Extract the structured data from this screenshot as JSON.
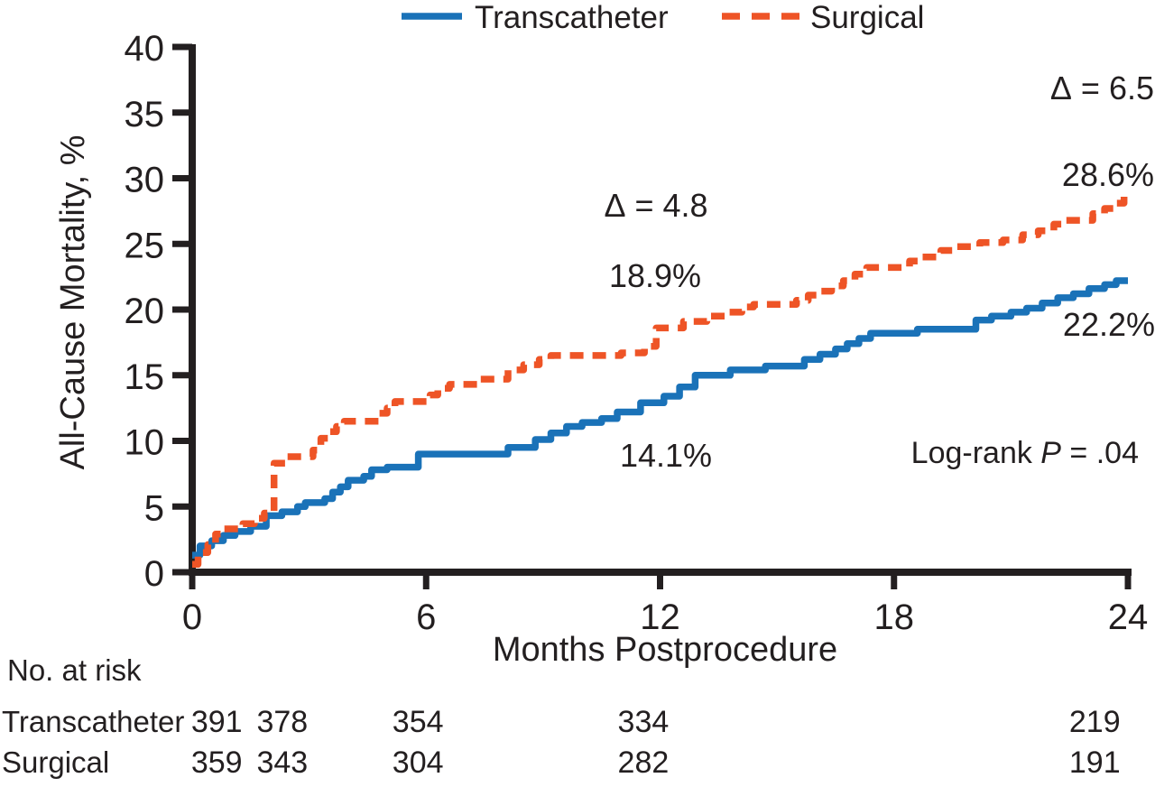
{
  "figure": {
    "background": "#ffffff",
    "text_color": "#231f20",
    "axis_color": "#231f20"
  },
  "legend": {
    "position": "top-center",
    "items": [
      {
        "label": "Transcatheter",
        "color": "#1a72b8",
        "style": "solid"
      },
      {
        "label": "Surgical",
        "color": "#ee5426",
        "style": "dashed"
      }
    ]
  },
  "chart_data": {
    "type": "line",
    "subtype": "kaplan_meier_step",
    "title": "",
    "xlabel": "Months Postprocedure",
    "ylabel": "All-Cause Mortality, %",
    "xlim": [
      0,
      24
    ],
    "ylim": [
      0,
      40
    ],
    "xticks": [
      0,
      6,
      12,
      18,
      24
    ],
    "yticks": [
      0,
      5,
      10,
      15,
      20,
      25,
      30,
      35,
      40
    ],
    "grid": false,
    "series": [
      {
        "name": "Transcatheter",
        "color": "#1a72b8",
        "style": "solid",
        "points": [
          [
            0,
            1.3
          ],
          [
            0.2,
            2.0
          ],
          [
            0.5,
            2.4
          ],
          [
            0.8,
            2.8
          ],
          [
            1.1,
            3.1
          ],
          [
            1.5,
            3.5
          ],
          [
            1.9,
            4.3
          ],
          [
            2.3,
            4.6
          ],
          [
            2.7,
            5.0
          ],
          [
            2.9,
            5.3
          ],
          [
            3.4,
            5.6
          ],
          [
            3.6,
            6.1
          ],
          [
            3.8,
            6.5
          ],
          [
            4.0,
            7.0
          ],
          [
            4.4,
            7.3
          ],
          [
            4.6,
            7.8
          ],
          [
            5.0,
            8.0
          ],
          [
            5.8,
            9.0
          ],
          [
            8.1,
            9.5
          ],
          [
            8.8,
            10.1
          ],
          [
            9.2,
            10.6
          ],
          [
            9.6,
            11.1
          ],
          [
            10.0,
            11.4
          ],
          [
            10.5,
            11.7
          ],
          [
            10.9,
            12.2
          ],
          [
            11.5,
            12.9
          ],
          [
            12.1,
            13.4
          ],
          [
            12.5,
            14.1
          ],
          [
            12.9,
            15.0
          ],
          [
            13.8,
            15.4
          ],
          [
            14.7,
            15.7
          ],
          [
            15.7,
            16.2
          ],
          [
            16.1,
            16.6
          ],
          [
            16.5,
            17.0
          ],
          [
            16.8,
            17.4
          ],
          [
            17.1,
            17.8
          ],
          [
            17.4,
            18.2
          ],
          [
            18.6,
            18.5
          ],
          [
            20.1,
            19.2
          ],
          [
            20.5,
            19.5
          ],
          [
            21.0,
            19.8
          ],
          [
            21.4,
            20.1
          ],
          [
            21.8,
            20.5
          ],
          [
            22.2,
            20.9
          ],
          [
            22.6,
            21.2
          ],
          [
            23.0,
            21.6
          ],
          [
            23.4,
            21.9
          ],
          [
            23.7,
            22.2
          ],
          [
            24,
            22.2
          ]
        ]
      },
      {
        "name": "Surgical",
        "color": "#ee5426",
        "style": "dashed",
        "points": [
          [
            0,
            0.6
          ],
          [
            0.15,
            1.5
          ],
          [
            0.4,
            2.1
          ],
          [
            0.6,
            2.9
          ],
          [
            0.8,
            3.3
          ],
          [
            1.3,
            3.7
          ],
          [
            1.6,
            4.1
          ],
          [
            1.85,
            4.5
          ],
          [
            2.1,
            8.3
          ],
          [
            2.4,
            8.8
          ],
          [
            3.1,
            9.3
          ],
          [
            3.3,
            10.2
          ],
          [
            3.5,
            10.7
          ],
          [
            3.7,
            11.1
          ],
          [
            3.9,
            11.5
          ],
          [
            4.8,
            12.1
          ],
          [
            5.0,
            12.5
          ],
          [
            5.2,
            13.0
          ],
          [
            6.1,
            13.5
          ],
          [
            6.3,
            14.0
          ],
          [
            6.6,
            14.3
          ],
          [
            7.4,
            14.7
          ],
          [
            8.1,
            15.4
          ],
          [
            8.5,
            15.8
          ],
          [
            8.9,
            16.2
          ],
          [
            9.2,
            16.5
          ],
          [
            11.0,
            16.7
          ],
          [
            11.6,
            17.2
          ],
          [
            11.9,
            18.6
          ],
          [
            12.6,
            19.1
          ],
          [
            13.2,
            19.5
          ],
          [
            13.7,
            19.8
          ],
          [
            14.1,
            20.2
          ],
          [
            14.4,
            20.4
          ],
          [
            15.5,
            20.7
          ],
          [
            15.8,
            21.1
          ],
          [
            16.1,
            21.4
          ],
          [
            16.4,
            21.8
          ],
          [
            16.7,
            22.2
          ],
          [
            17.0,
            22.7
          ],
          [
            17.3,
            23.2
          ],
          [
            18.4,
            23.7
          ],
          [
            18.7,
            24.0
          ],
          [
            19.2,
            24.5
          ],
          [
            19.5,
            24.8
          ],
          [
            20.2,
            25.1
          ],
          [
            20.8,
            25.3
          ],
          [
            21.3,
            25.7
          ],
          [
            21.7,
            26.0
          ],
          [
            22.1,
            26.5
          ],
          [
            22.4,
            26.8
          ],
          [
            23.1,
            27.3
          ],
          [
            23.4,
            27.7
          ],
          [
            23.7,
            28.1
          ],
          [
            23.9,
            28.6
          ],
          [
            24,
            28.6
          ]
        ]
      }
    ],
    "annotations": {
      "delta_12": {
        "text": "Δ = 4.8"
      },
      "surgical_12": {
        "text": "18.9%"
      },
      "transcatheter_12": {
        "text": "14.1%"
      },
      "delta_24": {
        "text": "Δ = 6.5"
      },
      "surgical_24": {
        "text": "28.6%"
      },
      "transcatheter_24": {
        "text": "22.2%"
      }
    },
    "logrank": {
      "prefix": "Log-rank ",
      "stat": "P",
      "value": " = .04"
    },
    "risk_table": {
      "heading": "No. at risk",
      "columns_months": [
        0.63,
        2.31,
        5.79,
        11.57,
        23.15
      ],
      "rows": [
        {
          "label": "Transcatheter",
          "values": [
            "391",
            "378",
            "354",
            "334",
            "219"
          ]
        },
        {
          "label": "Surgical",
          "values": [
            "359",
            "343",
            "304",
            "282",
            "191"
          ]
        }
      ]
    }
  }
}
